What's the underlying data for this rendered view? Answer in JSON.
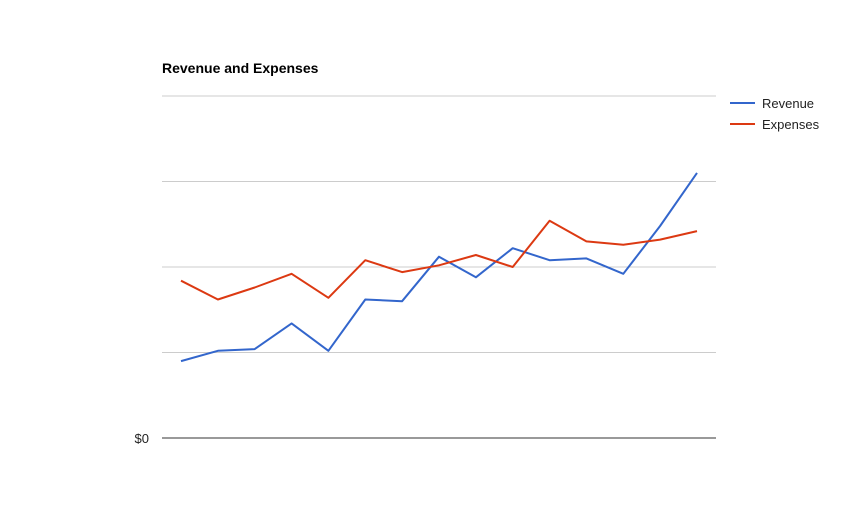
{
  "chart_data": {
    "type": "line",
    "title": "Revenue and Expenses",
    "xlabel": "",
    "ylabel": "",
    "x": [
      1,
      2,
      3,
      4,
      5,
      6,
      7,
      8,
      9,
      10,
      11,
      12,
      13,
      14,
      15
    ],
    "ylim": [
      0,
      100
    ],
    "y_ticks": [
      0,
      25,
      50,
      75,
      100
    ],
    "y_tick_labels": [
      "$0",
      "",
      "",
      "",
      ""
    ],
    "series": [
      {
        "name": "Revenue",
        "color": "#3366cc",
        "values": [
          22.5,
          25.5,
          26,
          33.5,
          25.5,
          40.5,
          40,
          53,
          47,
          55.5,
          52,
          52.5,
          48,
          62,
          77.5
        ]
      },
      {
        "name": "Expenses",
        "color": "#dc3912",
        "values": [
          46,
          40.5,
          44,
          48,
          41,
          52,
          48.5,
          50.5,
          53.5,
          50,
          63.5,
          57.5,
          56.5,
          58,
          60.5
        ]
      }
    ],
    "grid": true,
    "legend_position": "right"
  }
}
